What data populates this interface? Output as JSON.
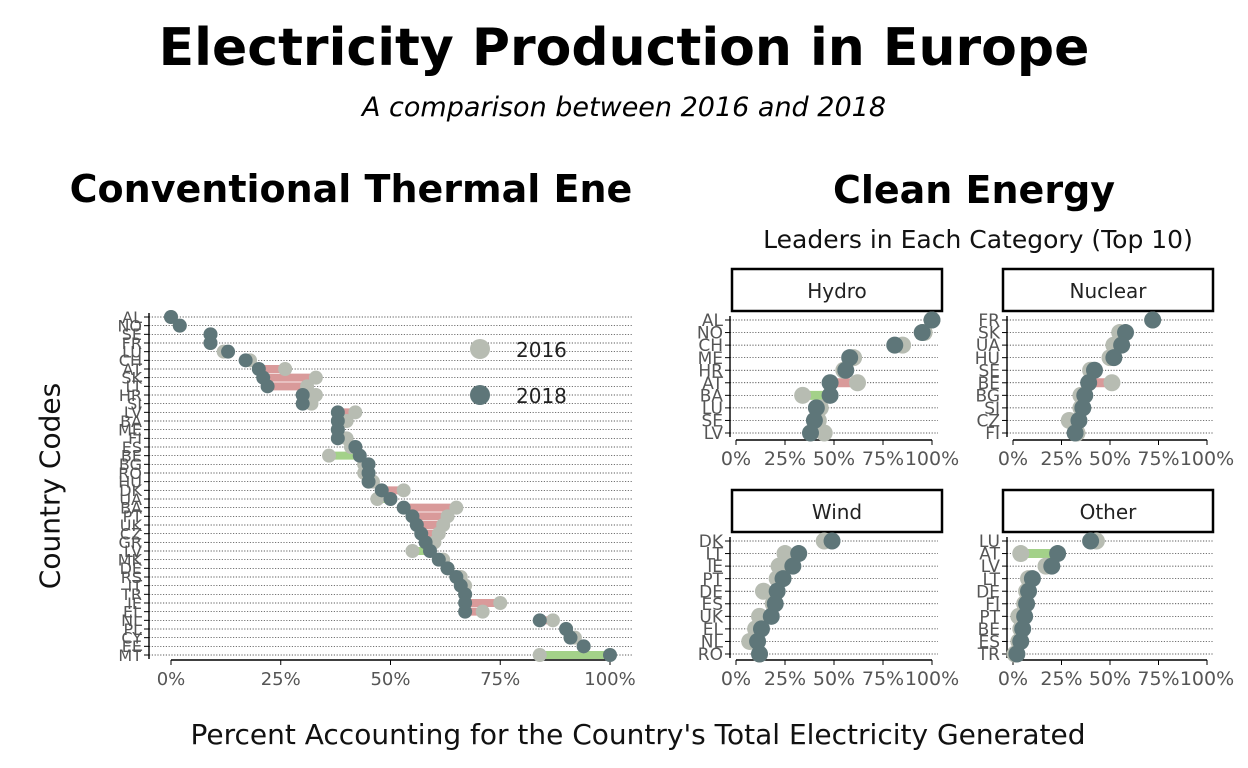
{
  "title": "Electricity Production in Europe",
  "subtitle": "A comparison between 2016 and 2018",
  "x_caption": "Percent Accounting for the Country's Total Electricity Generated",
  "y_caption": "Country Codes",
  "colors": {
    "y2016": "#b7bcb2",
    "y2018": "#5e7679",
    "increase": "#a3d189",
    "decrease": "#d99a9a"
  },
  "chart_data": [
    {
      "type": "dumbbell",
      "title": "Conventional Thermal Ene",
      "xlabel": "Percent Accounting for the Country's Total Electricity Generated",
      "ylabel": "Country Codes",
      "xlim": [
        0,
        100
      ],
      "xticks": [
        "0%",
        "25%",
        "50%",
        "75%",
        "100%"
      ],
      "legend": {
        "position": "right",
        "entries": [
          "2016",
          "2018"
        ]
      },
      "grid": "dotted horizontal",
      "rows": [
        {
          "code": "AL",
          "v2016": 0,
          "v2018": 0
        },
        {
          "code": "NO",
          "v2016": 2,
          "v2018": 2
        },
        {
          "code": "SE",
          "v2016": 9,
          "v2018": 9
        },
        {
          "code": "FR",
          "v2016": 9,
          "v2018": 9
        },
        {
          "code": "LU",
          "v2016": 12,
          "v2018": 13
        },
        {
          "code": "CH",
          "v2016": 18,
          "v2018": 17
        },
        {
          "code": "AT",
          "v2016": 26,
          "v2018": 20
        },
        {
          "code": "SK",
          "v2016": 33,
          "v2018": 21
        },
        {
          "code": "LT",
          "v2016": 31,
          "v2018": 22
        },
        {
          "code": "HR",
          "v2016": 33,
          "v2018": 30
        },
        {
          "code": "SI",
          "v2016": 32,
          "v2018": 30
        },
        {
          "code": "LV",
          "v2016": 42,
          "v2018": 38
        },
        {
          "code": "BA",
          "v2016": 40,
          "v2018": 38
        },
        {
          "code": "ME",
          "v2016": 38,
          "v2018": 38
        },
        {
          "code": "FI",
          "v2016": 40,
          "v2018": 38
        },
        {
          "code": "ES",
          "v2016": 41,
          "v2018": 42
        },
        {
          "code": "BE",
          "v2016": 36,
          "v2018": 43
        },
        {
          "code": "BG",
          "v2016": 44,
          "v2018": 45
        },
        {
          "code": "RO",
          "v2016": 44,
          "v2018": 45
        },
        {
          "code": "HU",
          "v2016": 46,
          "v2018": 45
        },
        {
          "code": "DK",
          "v2016": 53,
          "v2018": 48
        },
        {
          "code": "UA",
          "v2016": 47,
          "v2018": 50
        },
        {
          "code": "BA",
          "v2016": 65,
          "v2018": 53
        },
        {
          "code": "PT",
          "v2016": 63,
          "v2018": 55
        },
        {
          "code": "UK",
          "v2016": 62,
          "v2018": 56
        },
        {
          "code": "CZ",
          "v2016": 61,
          "v2018": 57
        },
        {
          "code": "GR",
          "v2016": 60,
          "v2018": 58
        },
        {
          "code": "LV",
          "v2016": 55,
          "v2018": 59
        },
        {
          "code": "MK",
          "v2016": 62,
          "v2018": 61
        },
        {
          "code": "DE",
          "v2016": 63,
          "v2018": 63
        },
        {
          "code": "RS",
          "v2016": 66,
          "v2018": 65
        },
        {
          "code": "IT",
          "v2016": 67,
          "v2018": 66
        },
        {
          "code": "TR",
          "v2016": 67,
          "v2018": 67
        },
        {
          "code": "IE",
          "v2016": 75,
          "v2018": 67
        },
        {
          "code": "EL",
          "v2016": 71,
          "v2018": 67
        },
        {
          "code": "NL",
          "v2016": 87,
          "v2018": 84
        },
        {
          "code": "PL",
          "v2016": 90,
          "v2018": 90
        },
        {
          "code": "CY",
          "v2016": 92,
          "v2018": 91
        },
        {
          "code": "EE",
          "v2016": 94,
          "v2018": 94
        },
        {
          "code": "MT",
          "v2016": 84,
          "v2018": 100
        }
      ]
    },
    {
      "type": "dumbbell-facets",
      "title": "Clean Energy",
      "subtitle": "Leaders in Each Category (Top 10)",
      "xlim": [
        0,
        100
      ],
      "xticks": [
        "0%",
        "25%",
        "50%",
        "75%",
        "100%"
      ],
      "facets": [
        {
          "name": "Hydro",
          "rows": [
            {
              "code": "AL",
              "v2016": 100,
              "v2018": 100
            },
            {
              "code": "NO",
              "v2016": 96,
              "v2018": 95
            },
            {
              "code": "CH",
              "v2016": 85,
              "v2018": 81
            },
            {
              "code": "ME",
              "v2016": 60,
              "v2018": 58
            },
            {
              "code": "HR",
              "v2016": 55,
              "v2018": 56
            },
            {
              "code": "AT",
              "v2016": 62,
              "v2018": 48
            },
            {
              "code": "BA",
              "v2016": 34,
              "v2018": 48
            },
            {
              "code": "LU",
              "v2016": 43,
              "v2018": 41
            },
            {
              "code": "SE",
              "v2016": 42,
              "v2018": 40
            },
            {
              "code": "LV",
              "v2016": 45,
              "v2018": 38
            }
          ]
        },
        {
          "name": "Nuclear",
          "rows": [
            {
              "code": "FR",
              "v2016": 72,
              "v2018": 72
            },
            {
              "code": "SK",
              "v2016": 55,
              "v2018": 58
            },
            {
              "code": "UA",
              "v2016": 52,
              "v2018": 56
            },
            {
              "code": "HU",
              "v2016": 50,
              "v2018": 52
            },
            {
              "code": "SE",
              "v2016": 40,
              "v2018": 42
            },
            {
              "code": "BE",
              "v2016": 51,
              "v2018": 39
            },
            {
              "code": "BG",
              "v2016": 35,
              "v2018": 37
            },
            {
              "code": "SI",
              "v2016": 35,
              "v2018": 36
            },
            {
              "code": "CZ",
              "v2016": 29,
              "v2018": 34
            },
            {
              "code": "FI",
              "v2016": 33,
              "v2018": 32
            }
          ]
        },
        {
          "name": "Wind",
          "rows": [
            {
              "code": "DK",
              "v2016": 45,
              "v2018": 49
            },
            {
              "code": "LT",
              "v2016": 25,
              "v2018": 32
            },
            {
              "code": "IE",
              "v2016": 22,
              "v2018": 29
            },
            {
              "code": "PT",
              "v2016": 21,
              "v2018": 24
            },
            {
              "code": "DE",
              "v2016": 14,
              "v2018": 21
            },
            {
              "code": "ES",
              "v2016": 19,
              "v2018": 20
            },
            {
              "code": "UK",
              "v2016": 12,
              "v2018": 18
            },
            {
              "code": "EL",
              "v2016": 10,
              "v2018": 13
            },
            {
              "code": "NL",
              "v2016": 7,
              "v2018": 11
            },
            {
              "code": "RO",
              "v2016": 12,
              "v2018": 12
            }
          ]
        },
        {
          "name": "Other",
          "rows": [
            {
              "code": "LU",
              "v2016": 43,
              "v2018": 40
            },
            {
              "code": "AT",
              "v2016": 4,
              "v2018": 23
            },
            {
              "code": "LV",
              "v2016": 17,
              "v2018": 20
            },
            {
              "code": "LT",
              "v2016": 8,
              "v2018": 10
            },
            {
              "code": "DE",
              "v2016": 7,
              "v2018": 8
            },
            {
              "code": "FI",
              "v2016": 6,
              "v2018": 7
            },
            {
              "code": "PT",
              "v2016": 3,
              "v2018": 6
            },
            {
              "code": "BE",
              "v2016": 4,
              "v2018": 5
            },
            {
              "code": "ES",
              "v2016": 3,
              "v2018": 4
            },
            {
              "code": "TR",
              "v2016": 1,
              "v2018": 2
            }
          ]
        }
      ]
    }
  ]
}
